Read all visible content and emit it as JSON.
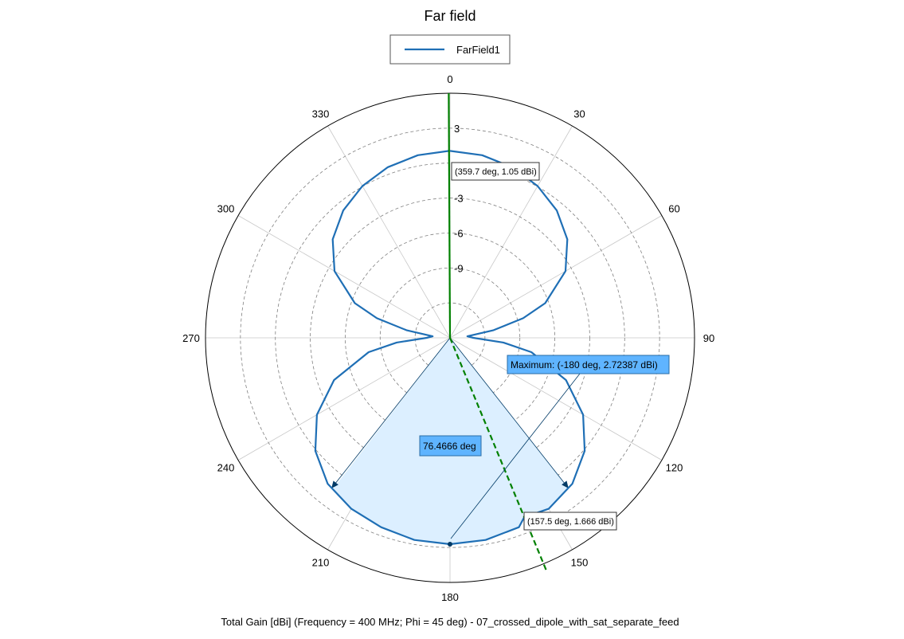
{
  "chart_data": {
    "type": "polar-line",
    "title": "Far field",
    "footer": "Total Gain [dBi] (Frequency = 400 MHz; Phi = 45 deg) - 07_crossed_dipole_with_sat_separate_feed",
    "legend": {
      "placement": "top-center",
      "entries": [
        "FarField1"
      ]
    },
    "theta_ticks": [
      "0",
      "30",
      "60",
      "90",
      "120",
      "150",
      "180",
      "210",
      "240",
      "270",
      "300",
      "330"
    ],
    "radial_ticks": [
      "3",
      "-3",
      "-6",
      "-9"
    ],
    "radial_tick_values": [
      3,
      -3,
      -6,
      -9
    ],
    "radial_range_dBi": [
      -15,
      6
    ],
    "radial_grid_dBi": [
      -12,
      -9,
      -6,
      -3,
      0,
      3
    ],
    "series": [
      {
        "name": "FarField1",
        "color": "#1f6fb5",
        "unit": "dBi",
        "theta_deg": [
          0,
          10,
          20,
          30,
          40,
          50,
          60,
          70,
          75,
          80,
          85,
          90,
          95,
          100,
          110,
          120,
          130,
          140,
          150,
          157.5,
          160,
          170,
          180,
          190,
          200,
          210,
          220,
          230,
          240,
          250,
          260,
          265,
          270,
          275,
          280,
          285,
          290,
          300,
          310,
          320,
          330,
          340,
          350,
          359.7
        ],
        "gain_dBi": [
          1.05,
          0.92,
          0.59,
          0.05,
          -0.73,
          -1.85,
          -3.55,
          -6.3,
          -8.5,
          -11.2,
          -13.5,
          -13.0,
          -10.4,
          -7.9,
          -4.4,
          -1.8,
          0.1,
          1.35,
          1.95,
          1.666,
          2.3,
          2.62,
          2.72,
          2.62,
          2.3,
          1.95,
          1.35,
          0.1,
          -1.8,
          -4.4,
          -7.9,
          -10.4,
          -13.0,
          -13.5,
          -11.2,
          -8.5,
          -6.3,
          -3.55,
          -1.85,
          -0.73,
          0.05,
          0.59,
          0.92,
          1.05
        ]
      }
    ],
    "beamwidth": {
      "label": "76.4666 deg",
      "from_deg": 141.77,
      "to_deg": 218.23,
      "color": "#dcefff"
    },
    "cursor_lines": [
      {
        "theta_deg": 359.7,
        "style": "solid",
        "color": "#008000"
      },
      {
        "theta_deg": 157.5,
        "style": "dashed",
        "color": "#008000"
      }
    ],
    "annotations": {
      "marker1": "(359.7 deg, 1.05 dBi)",
      "marker2": "(157.5 deg, 1.666 dBi)",
      "maximum": "Maximum: (-180 deg, 2.72387 dBi)",
      "beamwidth": "76.4666 deg"
    }
  }
}
